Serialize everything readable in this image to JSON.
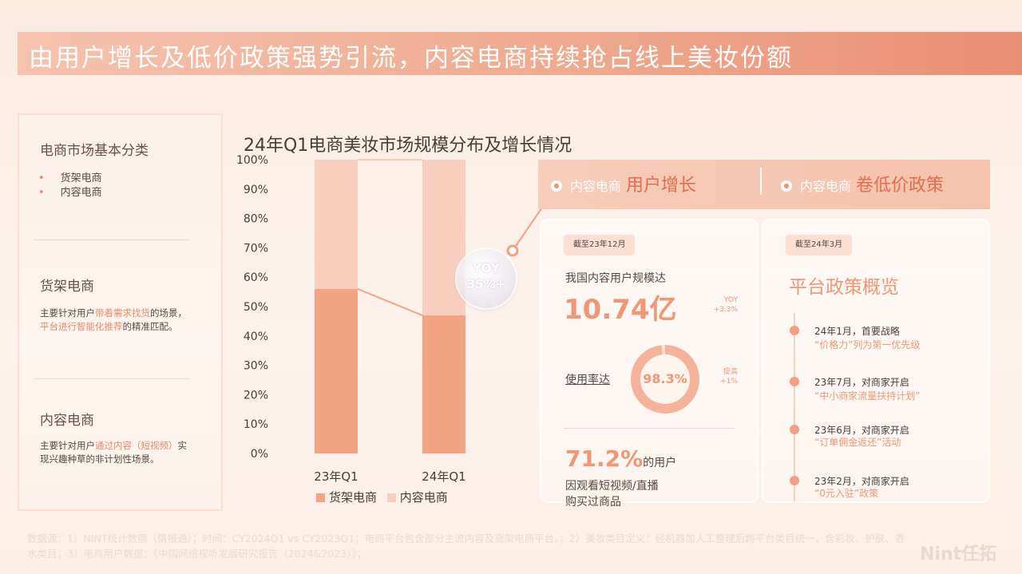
{
  "title": "由用户增长及低价政策强势引流，内容电商持续抢占线上美妆份额",
  "sidebar": {
    "heading": "电商市场基本分类",
    "items": [
      "货架电商",
      "内容电商"
    ],
    "sec1_title": "货架电商",
    "sec1_pre": "主要针对用户",
    "sec1_hl1": "带着需求找货",
    "sec1_mid": "的场景，",
    "sec1_hl2": "平台进行智能化推荐",
    "sec1_post": "的精准匹配。",
    "sec2_title": "内容电商",
    "sec2_pre": "主要针对用户",
    "sec2_hl": "通过内容（短视频）",
    "sec2_post": "实现兴趣种草的非计划性场景。"
  },
  "chart_data": {
    "type": "bar",
    "stacked": true,
    "title": "24年Q1电商美妆市场规模分布及增长情况",
    "categories": [
      "23年Q1",
      "24年Q1"
    ],
    "series": [
      {
        "name": "货架电商",
        "values": [
          56,
          47
        ],
        "color": "#f2a485"
      },
      {
        "name": "内容电商",
        "values": [
          44,
          53
        ],
        "color": "#f8cfbf"
      }
    ],
    "y_ticks": [
      "0%",
      "10%",
      "20%",
      "30%",
      "40%",
      "50%",
      "60%",
      "70%",
      "80%",
      "90%",
      "100%"
    ],
    "ylim": [
      0,
      100
    ],
    "legend": "bottom",
    "annotation": {
      "line1": "YOY",
      "line2": "35%+"
    }
  },
  "band": {
    "left_small": "内容电商",
    "left_big": "用户增长",
    "right_small": "内容电商",
    "right_big": "卷低价政策"
  },
  "card1": {
    "date": "截至23年12月",
    "label": "我国内容用户规模达",
    "users_value": "10.74亿",
    "yoy_label": "YOY",
    "yoy_value": "+3.3%",
    "rate_label": "使用率达",
    "rate_value": "98.3%",
    "rate_percent": 98.3,
    "rate_up_label": "提高",
    "rate_up_value": "+1%",
    "stat_value": "71.2%",
    "stat_suffix": "的用户",
    "stat_line2": "因观看短视频/直播",
    "stat_line3": "购买过商品"
  },
  "card2": {
    "date": "截至24年3月",
    "title": "平台政策概览",
    "events": [
      {
        "time": "24年1月，首要战略",
        "policy": "“价格力”列为第一优先级"
      },
      {
        "time": "23年7月，对商家开启",
        "policy": "“中小商家流量扶持计划”"
      },
      {
        "time": "23年6月，对商家开启",
        "policy": "“订单佣金返还”活动"
      },
      {
        "time": "23年2月，对商家开启",
        "policy": "“0元入驻”政策"
      }
    ]
  },
  "footer": "数据源：1）NINT统计数据（情报通）；时间：CY2024Q1 vs CY2023Q1；电商平台包含部分主流内容及货架电商平台。；2）美妆类目定义：经机器加人工整理后跨平台类目统一，含彩妆、护肤、香水类目；3）电商用户数据：《中国网络视听发展研究报告（2024&2023）》；",
  "logo": "Nint任拓"
}
